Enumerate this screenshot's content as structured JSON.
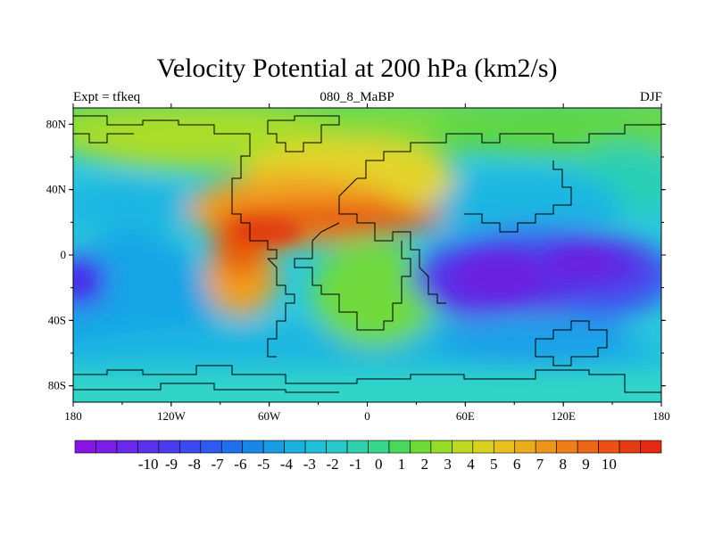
{
  "title": "Velocity Potential at 200 hPa (km2/s)",
  "left_string": "Expt = tfkeq",
  "center_string": "080_8_MaBP",
  "right_string": "DJF",
  "map": {
    "lat_ticks": [
      "80N",
      "40N",
      "0",
      "40S",
      "80S"
    ],
    "lat_values": [
      80,
      40,
      0,
      -40,
      -80
    ],
    "lon_ticks": [
      "180",
      "120W",
      "60W",
      "0",
      "60E",
      "120E",
      "180"
    ],
    "lon_values": [
      -180,
      -120,
      -60,
      0,
      60,
      120,
      180
    ],
    "lat_range": [
      -90,
      90
    ],
    "lon_range": [
      -180,
      180
    ]
  },
  "colorbar": {
    "labels": [
      "-10",
      "-9",
      "-8",
      "-7",
      "-6",
      "-5",
      "-4",
      "-3",
      "-2",
      "-1",
      "0",
      "1",
      "2",
      "3",
      "4",
      "5",
      "6",
      "7",
      "8",
      "9",
      "10"
    ],
    "levels": [
      -10,
      -9,
      -8,
      -7,
      -6,
      -5,
      -4,
      -3,
      -2,
      -1,
      0,
      1,
      2,
      3,
      4,
      5,
      6,
      7,
      8,
      9,
      10
    ]
  }
}
